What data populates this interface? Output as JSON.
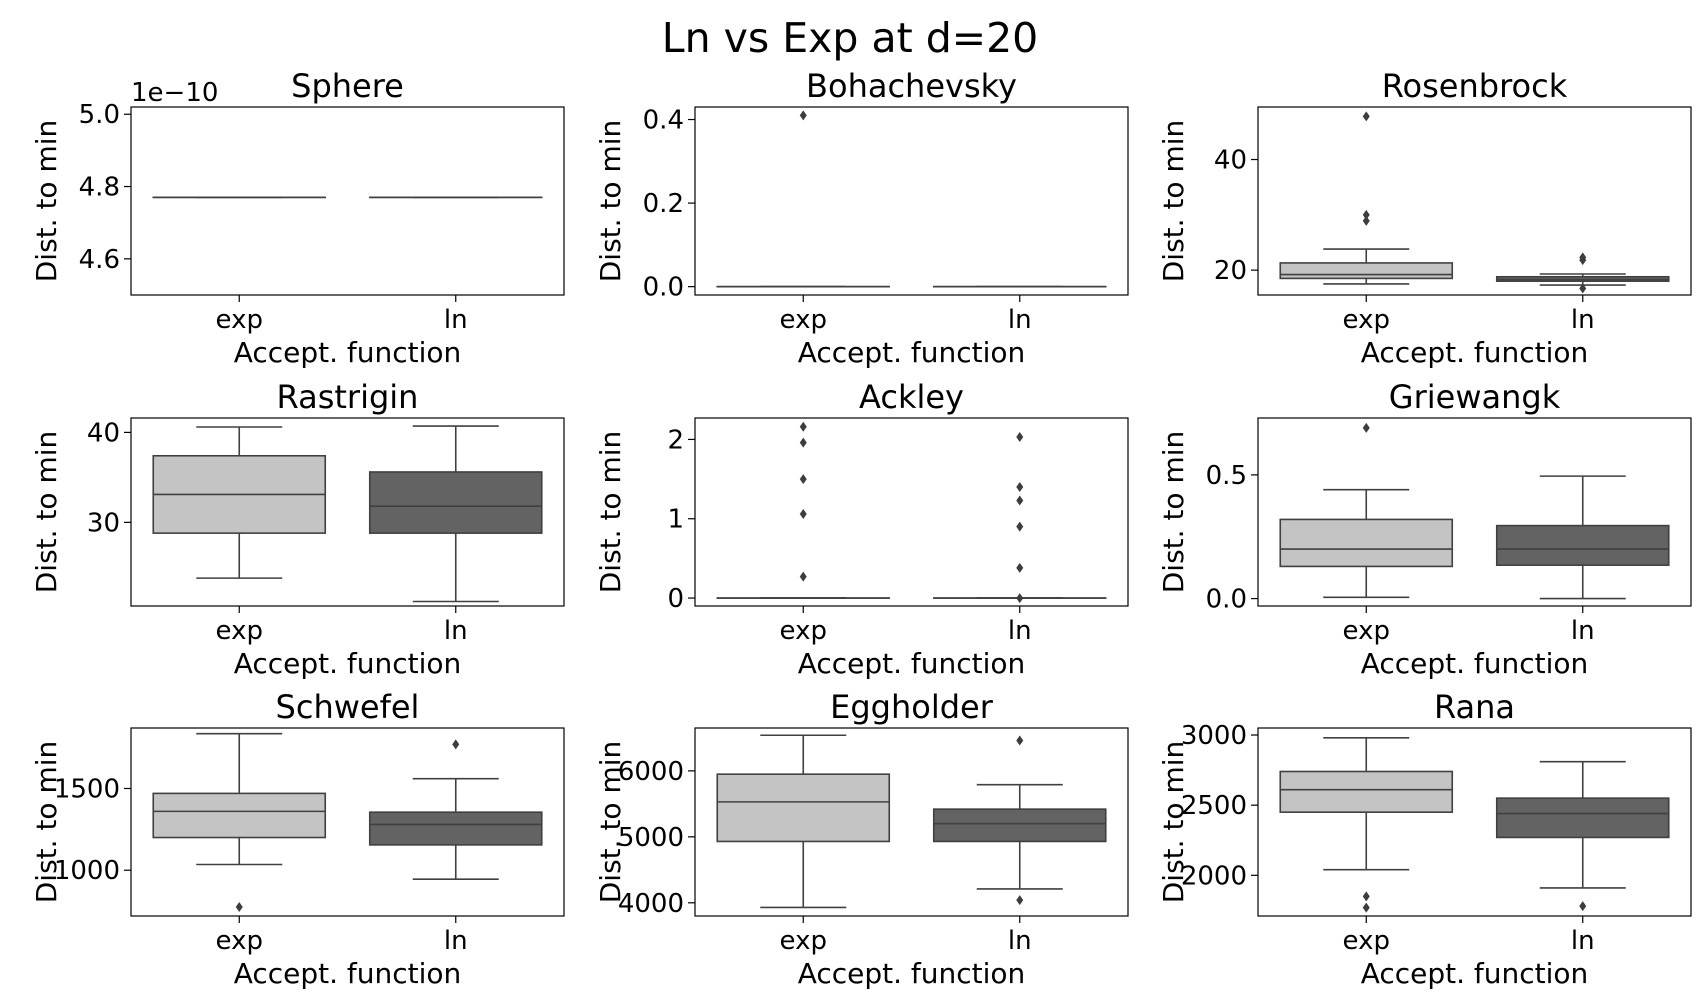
{
  "suptitle": "Ln vs Exp at d=20",
  "colors": {
    "exp_box": "#c4c4c4",
    "ln_box": "#636363",
    "line": "#404040",
    "frame": "#000000",
    "background": "#ffffff"
  },
  "chart_data": [
    {
      "type": "box",
      "title": "Sphere",
      "xlabel": "Accept. function",
      "ylabel": "Dist. to min",
      "categories": [
        "exp",
        "ln"
      ],
      "ylim": [
        4.5,
        5.02
      ],
      "yticks": [
        4.6,
        4.8,
        5.0
      ],
      "ytick_labels": [
        "4.6",
        "4.8",
        "5.0"
      ],
      "offset_text": "1e−10",
      "boxes": [
        {
          "category": "exp",
          "q1": 4.77,
          "median": 4.77,
          "q3": 4.77,
          "whisker_low": 4.77,
          "whisker_high": 4.77,
          "outliers": []
        },
        {
          "category": "ln",
          "q1": 4.77,
          "median": 4.77,
          "q3": 4.77,
          "whisker_low": 4.77,
          "whisker_high": 4.77,
          "outliers": []
        }
      ]
    },
    {
      "type": "box",
      "title": "Bohachevsky",
      "xlabel": "Accept. function",
      "ylabel": "Dist. to min",
      "categories": [
        "exp",
        "ln"
      ],
      "ylim": [
        -0.02,
        0.43
      ],
      "yticks": [
        0.0,
        0.2,
        0.4
      ],
      "ytick_labels": [
        "0.0",
        "0.2",
        "0.4"
      ],
      "boxes": [
        {
          "category": "exp",
          "q1": 0.0,
          "median": 0.0,
          "q3": 0.0,
          "whisker_low": 0.0,
          "whisker_high": 0.0,
          "outliers": [
            0.41
          ]
        },
        {
          "category": "ln",
          "q1": 0.0,
          "median": 0.0,
          "q3": 0.0,
          "whisker_low": 0.0,
          "whisker_high": 0.0,
          "outliers": []
        }
      ]
    },
    {
      "type": "box",
      "title": "Rosenbrock",
      "xlabel": "Accept. function",
      "ylabel": "Dist. to min",
      "categories": [
        "exp",
        "ln"
      ],
      "ylim": [
        15.5,
        49.5
      ],
      "yticks": [
        20,
        40
      ],
      "ytick_labels": [
        "20",
        "40"
      ],
      "boxes": [
        {
          "category": "exp",
          "q1": 18.5,
          "median": 19.2,
          "q3": 21.3,
          "whisker_low": 17.5,
          "whisker_high": 23.8,
          "outliers": [
            28.9,
            30.0,
            47.8
          ]
        },
        {
          "category": "ln",
          "q1": 18.0,
          "median": 18.3,
          "q3": 18.8,
          "whisker_low": 17.3,
          "whisker_high": 19.3,
          "outliers": [
            16.7,
            21.8,
            22.3
          ]
        }
      ]
    },
    {
      "type": "box",
      "title": "Rastrigin",
      "xlabel": "Accept. function",
      "ylabel": "Dist. to min",
      "categories": [
        "exp",
        "ln"
      ],
      "ylim": [
        20.7,
        41.6
      ],
      "yticks": [
        30,
        40
      ],
      "ytick_labels": [
        "30",
        "40"
      ],
      "boxes": [
        {
          "category": "exp",
          "q1": 28.8,
          "median": 33.1,
          "q3": 37.4,
          "whisker_low": 23.8,
          "whisker_high": 40.6,
          "outliers": []
        },
        {
          "category": "ln",
          "q1": 28.8,
          "median": 31.8,
          "q3": 35.6,
          "whisker_low": 21.2,
          "whisker_high": 40.7,
          "outliers": []
        }
      ]
    },
    {
      "type": "box",
      "title": "Ackley",
      "xlabel": "Accept. function",
      "ylabel": "Dist. to min",
      "categories": [
        "exp",
        "ln"
      ],
      "ylim": [
        -0.1,
        2.27
      ],
      "yticks": [
        0,
        1,
        2
      ],
      "ytick_labels": [
        "0",
        "1",
        "2"
      ],
      "boxes": [
        {
          "category": "exp",
          "q1": 0.0,
          "median": 0.0,
          "q3": 0.0,
          "whisker_low": 0.0,
          "whisker_high": 0.0,
          "outliers": [
            0.27,
            1.06,
            1.5,
            1.96,
            2.16
          ]
        },
        {
          "category": "ln",
          "q1": 0.0,
          "median": 0.0,
          "q3": 0.0,
          "whisker_low": 0.0,
          "whisker_high": 0.0,
          "outliers": [
            0.0,
            0.38,
            0.9,
            1.23,
            1.4,
            2.03
          ]
        }
      ]
    },
    {
      "type": "box",
      "title": "Griewangk",
      "xlabel": "Accept. function",
      "ylabel": "Dist. to min",
      "categories": [
        "exp",
        "ln"
      ],
      "ylim": [
        -0.03,
        0.73
      ],
      "yticks": [
        0.0,
        0.5
      ],
      "ytick_labels": [
        "0.0",
        "0.5"
      ],
      "boxes": [
        {
          "category": "exp",
          "q1": 0.13,
          "median": 0.2,
          "q3": 0.32,
          "whisker_low": 0.005,
          "whisker_high": 0.44,
          "outliers": [
            0.69
          ]
        },
        {
          "category": "ln",
          "q1": 0.135,
          "median": 0.2,
          "q3": 0.295,
          "whisker_low": 0.0,
          "whisker_high": 0.495,
          "outliers": []
        }
      ]
    },
    {
      "type": "box",
      "title": "Schwefel",
      "xlabel": "Accept. function",
      "ylabel": "Dist. to min",
      "categories": [
        "exp",
        "ln"
      ],
      "ylim": [
        720,
        1870
      ],
      "yticks": [
        1000,
        1500
      ],
      "ytick_labels": [
        "1000",
        "1500"
      ],
      "boxes": [
        {
          "category": "exp",
          "q1": 1200,
          "median": 1360,
          "q3": 1470,
          "whisker_low": 1035,
          "whisker_high": 1835,
          "outliers": [
            775
          ]
        },
        {
          "category": "ln",
          "q1": 1155,
          "median": 1280,
          "q3": 1355,
          "whisker_low": 945,
          "whisker_high": 1560,
          "outliers": [
            1770
          ]
        }
      ]
    },
    {
      "type": "box",
      "title": "Eggholder",
      "xlabel": "Accept. function",
      "ylabel": "Dist. to min",
      "categories": [
        "exp",
        "ln"
      ],
      "ylim": [
        3800,
        6650
      ],
      "yticks": [
        4000,
        5000,
        6000
      ],
      "ytick_labels": [
        "4000",
        "5000",
        "6000"
      ],
      "boxes": [
        {
          "category": "exp",
          "q1": 4930,
          "median": 5530,
          "q3": 5950,
          "whisker_low": 3930,
          "whisker_high": 6540,
          "outliers": []
        },
        {
          "category": "ln",
          "q1": 4930,
          "median": 5200,
          "q3": 5420,
          "whisker_low": 4210,
          "whisker_high": 5790,
          "outliers": [
            4040,
            6460
          ]
        }
      ]
    },
    {
      "type": "box",
      "title": "Rana",
      "xlabel": "Accept. function",
      "ylabel": "Dist. to min",
      "categories": [
        "exp",
        "ln"
      ],
      "ylim": [
        1710,
        3050
      ],
      "yticks": [
        2000,
        2500,
        3000
      ],
      "ytick_labels": [
        "2000",
        "2500",
        "3000"
      ],
      "boxes": [
        {
          "category": "exp",
          "q1": 2450,
          "median": 2610,
          "q3": 2740,
          "whisker_low": 2040,
          "whisker_high": 2980,
          "outliers": [
            1770,
            1850
          ]
        },
        {
          "category": "ln",
          "q1": 2270,
          "median": 2440,
          "q3": 2550,
          "whisker_low": 1910,
          "whisker_high": 2810,
          "outliers": [
            1780
          ]
        }
      ]
    }
  ]
}
